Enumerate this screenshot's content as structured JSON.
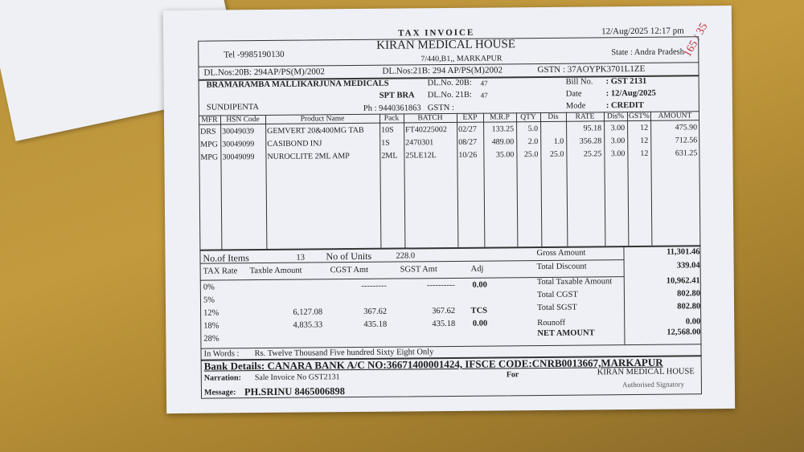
{
  "invoice": {
    "doc_type": "TAX INVOICE",
    "datetime": "12/Aug/2025  12:17 pm",
    "handwritten_note": "165 / 35",
    "seller": {
      "name": "KIRAN  MEDICAL HOUSE",
      "tel": "Tel -9985190130",
      "address": "7/440,B1,, MARKAPUR",
      "state": "State :  Andra Pradesh",
      "dl20b": "DL.Nos:20B:  294AP/PS(M)/2002",
      "dl21b": "DL.Nos:21B:  294 AP/PS(M)2002",
      "gstn": "GSTN :    37AOYPK3701L1ZE"
    },
    "buyer": {
      "name": "BRAMARAMBA MALLIKARJUNA MEDICALS",
      "line2": "SPT BRA",
      "city": "SUNDIPENTA",
      "phone": "Ph :  9440361863",
      "dl20b_label": "DL.No. 20B:",
      "dl20b": "47",
      "dl21b_label": "DL.No. 21B:",
      "dl21b": "47",
      "gstn": "GSTN :"
    },
    "bill": {
      "bill_no_label": "Bill No.",
      "bill_no": ":   GST 2131",
      "date_label": "Date",
      "date": ":   12/Aug/2025",
      "mode_label": "Mode",
      "mode": ":   CREDIT"
    },
    "columns": [
      "MFR",
      "HSN Code",
      "Product Name",
      "Pack",
      "BATCH",
      "EXP",
      "M.R.P",
      "QTY",
      "Dis",
      "RATE",
      "Dis%",
      "GST%",
      "AMOUNT"
    ],
    "rows": [
      [
        "DRS",
        "30049039",
        "GEMVERT 20&400MG TAB",
        "10S",
        "FT40225002",
        "02/27",
        "133.25",
        "5.0",
        "",
        "95.18",
        "3.00",
        "12",
        "475.90"
      ],
      [
        "MPG",
        "30049099",
        "CASIBOND INJ",
        "1S",
        "2470301",
        "08/27",
        "489.00",
        "2.0",
        "1.0",
        "356.28",
        "3.00",
        "12",
        "712.56"
      ],
      [
        "MPG",
        "30049099",
        "NUROCLITE 2ML AMP",
        "2ML",
        "25LE12L",
        "10/26",
        "35.00",
        "25.0",
        "25.0",
        "25.25",
        "3.00",
        "12",
        "631.25"
      ]
    ],
    "summary": {
      "items_label": "No.of Items",
      "items": "13",
      "units_label": "No of Units",
      "units": "228.0",
      "tax_headers": [
        "TAX Rate",
        "Taxble Amount",
        "CGST Amt",
        "SGST Amt",
        "Adj"
      ],
      "tax_rows": [
        [
          "0%",
          "",
          "---------",
          "----------",
          "0.00"
        ],
        [
          "5%",
          "",
          "",
          "",
          ""
        ],
        [
          "12%",
          "6,127.08",
          "367.62",
          "367.62",
          "TCS"
        ],
        [
          "18%",
          "4,835.33",
          "435.18",
          "435.18",
          "0.00"
        ],
        [
          "28%",
          "",
          "",
          "",
          ""
        ]
      ],
      "totals": [
        [
          "Gross Amount",
          "11,301.46"
        ],
        [
          "Total Discount",
          "339.04"
        ],
        [
          "Total Taxable Amount",
          "10,962.41"
        ],
        [
          "Total CGST",
          "802.80"
        ],
        [
          "Total SGST",
          "802.80"
        ],
        [
          "Rounoff",
          "0.00"
        ],
        [
          "NET AMOUNT",
          "12,568.00"
        ]
      ]
    },
    "in_words_label": "In Words :",
    "in_words": "Rs. Twelve Thousand Five hundred Sixty Eight  Only",
    "bank": "Bank Details: CANARA BANK A/C NO:36671400001424, IFSCE CODE:CNRB0013667,MARKAPUR",
    "narration_label": "Narration:",
    "narration": "Sale Invoice No GST2131",
    "for_label": "For",
    "for_name": "KIRAN  MEDICAL HOUSE",
    "signatory": "Authorised Signatory",
    "message_label": "Message:",
    "message": "PH.SRINU 8465006898"
  }
}
